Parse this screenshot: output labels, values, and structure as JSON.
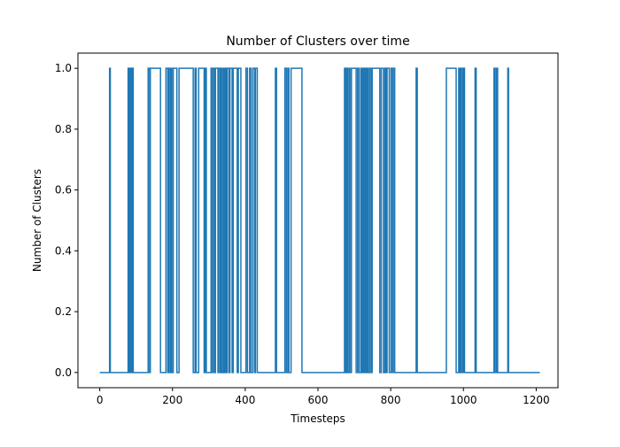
{
  "chart_data": {
    "type": "line",
    "title": "Number of Clusters over time",
    "xlabel": "Timesteps",
    "ylabel": "Number of Clusters",
    "xlim": [
      -60,
      1260
    ],
    "ylim": [
      -0.05,
      1.05
    ],
    "x_ticks": [
      0,
      200,
      400,
      600,
      800,
      1000,
      1200
    ],
    "x_tick_labels": [
      "0",
      "200",
      "400",
      "600",
      "800",
      "1000",
      "1200"
    ],
    "y_ticks": [
      0.0,
      0.2,
      0.4,
      0.6,
      0.8,
      1.0
    ],
    "y_tick_labels": [
      "0.0",
      "0.2",
      "0.4",
      "0.6",
      "0.8",
      "1.0"
    ],
    "grid": false,
    "legend": "none",
    "series_color": "#1f77b4",
    "x_start": 0,
    "x_end": 1210,
    "intervals_value_1": [
      [
        27,
        29
      ],
      [
        78,
        81
      ],
      [
        84,
        87
      ],
      [
        89,
        92
      ],
      [
        133,
        137
      ],
      [
        139,
        167
      ],
      [
        182,
        187
      ],
      [
        189,
        193
      ],
      [
        195,
        198
      ],
      [
        202,
        212
      ],
      [
        218,
        257
      ],
      [
        262,
        265
      ],
      [
        272,
        287
      ],
      [
        290,
        293
      ],
      [
        306,
        310
      ],
      [
        312,
        316
      ],
      [
        318,
        325
      ],
      [
        327,
        331
      ],
      [
        333,
        335
      ],
      [
        339,
        342
      ],
      [
        345,
        348
      ],
      [
        351,
        356
      ],
      [
        358,
        364
      ],
      [
        367,
        378
      ],
      [
        381,
        388
      ],
      [
        402,
        406
      ],
      [
        412,
        416
      ],
      [
        421,
        426
      ],
      [
        428,
        433
      ],
      [
        483,
        486
      ],
      [
        509,
        513
      ],
      [
        517,
        520
      ],
      [
        526,
        556
      ],
      [
        673,
        676
      ],
      [
        679,
        682
      ],
      [
        686,
        688
      ],
      [
        692,
        705
      ],
      [
        709,
        713
      ],
      [
        718,
        721
      ],
      [
        724,
        727
      ],
      [
        729,
        732
      ],
      [
        735,
        738
      ],
      [
        742,
        746
      ],
      [
        749,
        770
      ],
      [
        774,
        780
      ],
      [
        784,
        787
      ],
      [
        790,
        796
      ],
      [
        801,
        805
      ],
      [
        807,
        811
      ],
      [
        870,
        873
      ],
      [
        953,
        980
      ],
      [
        987,
        990
      ],
      [
        993,
        997
      ],
      [
        1000,
        1003
      ],
      [
        1032,
        1035
      ],
      [
        1084,
        1087
      ],
      [
        1091,
        1094
      ],
      [
        1122,
        1124
      ]
    ]
  }
}
